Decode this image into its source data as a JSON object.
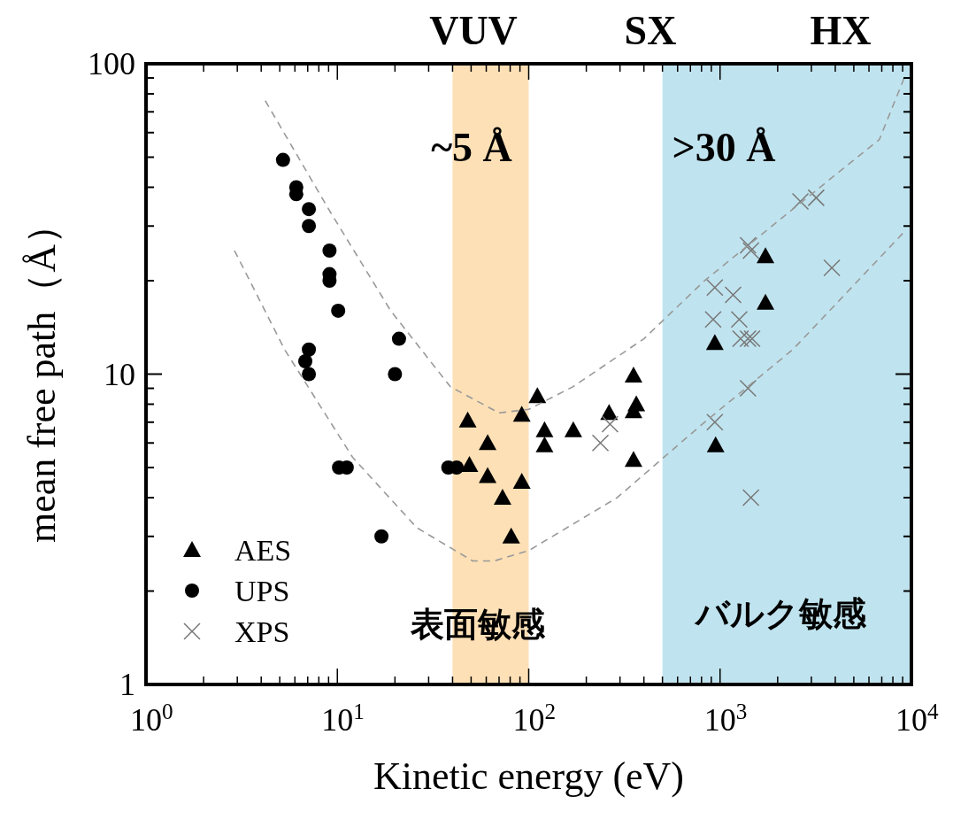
{
  "chart_data": {
    "type": "scatter",
    "xlabel": "Kinetic energy (eV)",
    "ylabel": "mean free path（Å）",
    "log": "xy",
    "xlim": [
      1,
      10000
    ],
    "ylim": [
      1,
      100
    ],
    "xticks": [
      {
        "value": 1,
        "label": "10$^{0}$"
      },
      {
        "value": 2,
        "label": null
      },
      {
        "value": 3,
        "label": null
      },
      {
        "value": 4,
        "label": null
      },
      {
        "value": 5,
        "label": null
      },
      {
        "value": 6,
        "label": null
      },
      {
        "value": 7,
        "label": null
      },
      {
        "value": 8,
        "label": null
      },
      {
        "value": 9,
        "label": null
      },
      {
        "value": 10,
        "label": "10$^{1}$"
      },
      {
        "value": 20,
        "label": null
      },
      {
        "value": 30,
        "label": null
      },
      {
        "value": 40,
        "label": null
      },
      {
        "value": 50,
        "label": null
      },
      {
        "value": 60,
        "label": null
      },
      {
        "value": 70,
        "label": null
      },
      {
        "value": 80,
        "label": null
      },
      {
        "value": 90,
        "label": null
      },
      {
        "value": 100,
        "label": "10$^{2}$"
      },
      {
        "value": 200,
        "label": null
      },
      {
        "value": 300,
        "label": null
      },
      {
        "value": 400,
        "label": null
      },
      {
        "value": 500,
        "label": null
      },
      {
        "value": 600,
        "label": null
      },
      {
        "value": 700,
        "label": null
      },
      {
        "value": 800,
        "label": null
      },
      {
        "value": 900,
        "label": null
      },
      {
        "value": 1000,
        "label": "10$^{3}$"
      },
      {
        "value": 2000,
        "label": null
      },
      {
        "value": 3000,
        "label": null
      },
      {
        "value": 4000,
        "label": null
      },
      {
        "value": 5000,
        "label": null
      },
      {
        "value": 6000,
        "label": null
      },
      {
        "value": 7000,
        "label": null
      },
      {
        "value": 8000,
        "label": null
      },
      {
        "value": 9000,
        "label": null
      },
      {
        "value": 10000,
        "label": "10$^{4}$"
      }
    ],
    "yticks": [
      1,
      {
        "value": 2,
        "label": null
      },
      {
        "value": 3,
        "label": null
      },
      {
        "value": 4,
        "label": null
      },
      {
        "value": 5,
        "label": null
      },
      {
        "value": 6,
        "label": null
      },
      {
        "value": 7,
        "label": null
      },
      {
        "value": 8,
        "label": null
      },
      {
        "value": 9,
        "label": null
      },
      10,
      {
        "value": 20,
        "label": null
      },
      {
        "value": 30,
        "label": null
      },
      {
        "value": 40,
        "label": null
      },
      {
        "value": 50,
        "label": null
      },
      {
        "value": 60,
        "label": null
      },
      {
        "value": 70,
        "label": null
      },
      {
        "value": 80,
        "label": null
      },
      {
        "value": 90,
        "label": null
      },
      100
    ],
    "grid": false,
    "legend": "bottom left",
    "bands": [
      {
        "axis": "x",
        "from": 40,
        "to": 100,
        "color": "#fde0b6"
      },
      {
        "axis": "x",
        "from": 500,
        "to": 10000,
        "color": "#c0e4ef"
      }
    ],
    "annotations": [
      "VUV",
      "SX",
      "HX",
      "~5 Å",
      ">30 Å",
      "表面敏感",
      "バルク敏感"
    ],
    "series": [
      {
        "name": "AES",
        "color": "#000000",
        "marker": "triangle",
        "x": [
          48,
          49,
          61,
          61,
          73,
          81,
          92,
          92,
          111,
          121,
          121,
          171,
          263,
          353,
          365,
          353,
          353,
          1727,
          1727,
          939,
          948
        ],
        "values": [
          7.1,
          5.1,
          6.0,
          4.7,
          4.0,
          3.0,
          7.4,
          4.5,
          8.5,
          6.6,
          5.9,
          6.6,
          7.5,
          9.9,
          8.0,
          7.6,
          5.3,
          24,
          17,
          12.6,
          5.9
        ]
      },
      {
        "name": "UPS",
        "color": "#000000",
        "marker": "circle",
        "x": [
          5.2,
          6.1,
          6.1,
          7.1,
          7.1,
          9.1,
          9.1,
          9.1,
          10.1,
          7.1,
          6.8,
          7.1,
          21,
          20,
          10.2,
          11.2,
          17,
          38,
          42
        ],
        "values": [
          49,
          40,
          38,
          34,
          30,
          25,
          21,
          20,
          16,
          12,
          11,
          10,
          13,
          10,
          5.0,
          5.0,
          3.0,
          5.0,
          5.0
        ]
      },
      {
        "name": "XPS",
        "color": "#777777",
        "marker": "cross",
        "x": [
          2630,
          3180,
          1400,
          1450,
          3840,
          939,
          1170,
          920,
          1260,
          1280,
          1400,
          1470,
          1400,
          939,
          1450,
          237,
          266
        ],
        "values": [
          36,
          37,
          26,
          25,
          22,
          19,
          18,
          15,
          15,
          13,
          13,
          13,
          9,
          7,
          4,
          6,
          6.9
        ]
      },
      {
        "type": "line",
        "color": "#999999",
        "line_style": "dashed",
        "marker": "none",
        "x": [
          4.2,
          9,
          19,
          39,
          70,
          100,
          170,
          400,
          830,
          2400,
          6800,
          9300
        ],
        "values": [
          76,
          34,
          16,
          9.1,
          7.5,
          7.7,
          9.1,
          13,
          20,
          34,
          57,
          92
        ]
      },
      {
        "type": "line",
        "color": "#999999",
        "line_style": "dashed",
        "marker": "none",
        "x": [
          2.9,
          5.3,
          12,
          26,
          51,
          66,
          100,
          290,
          830,
          2400,
          9300
        ],
        "values": [
          25,
          12,
          5.4,
          3.2,
          2.5,
          2.5,
          2.7,
          4.0,
          7.0,
          12,
          29
        ]
      }
    ]
  }
}
